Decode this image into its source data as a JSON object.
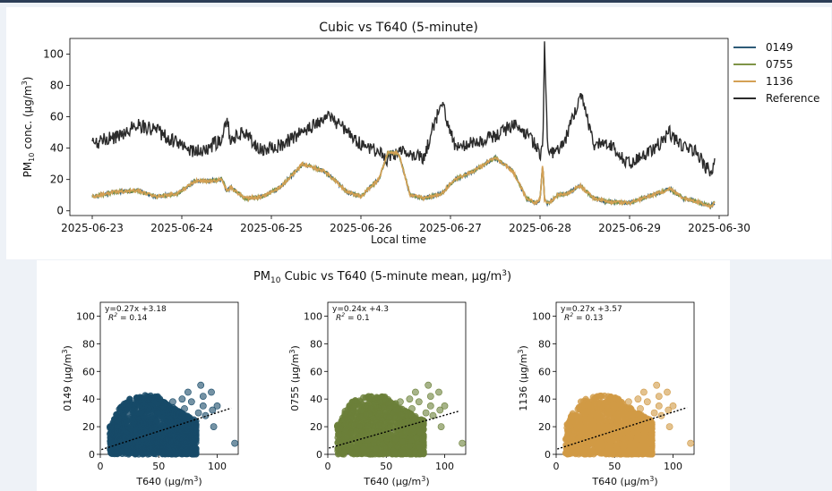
{
  "chart_data": [
    {
      "type": "line",
      "title": "Cubic vs T640 (5-minute)",
      "xlabel": "Local time",
      "ylabel_main": "PM",
      "ylabel_sub": "10",
      "ylabel_rest": " conc. (µg/m",
      "ylabel_sup": "3",
      "ylabel_end": ")",
      "x_ticks": [
        "2025-06-23",
        "2025-06-24",
        "2025-06-25",
        "2025-06-26",
        "2025-06-27",
        "2025-06-28",
        "2025-06-29",
        "2025-06-30"
      ],
      "y_ticks": [
        "0",
        "20",
        "40",
        "60",
        "80",
        "100"
      ],
      "ylim": [
        -3,
        110
      ],
      "xlim_days": [
        -0.25,
        7.1
      ],
      "grid": false,
      "legend_position": "outside-right",
      "series": [
        {
          "name": "0149",
          "color": "#2e5b78"
        },
        {
          "name": "0755",
          "color": "#7f9447"
        },
        {
          "name": "1136",
          "color": "#d4a055"
        },
        {
          "name": "Reference",
          "color": "#2b2b2b"
        }
      ],
      "x_days": [
        0,
        0.25,
        0.5,
        0.7,
        0.95,
        1.15,
        1.3,
        1.45,
        1.5,
        1.55,
        1.7,
        1.9,
        2.1,
        2.35,
        2.6,
        2.85,
        3.0,
        3.1,
        3.2,
        3.3,
        3.42,
        3.55,
        3.7,
        3.9,
        4.05,
        4.25,
        4.5,
        4.7,
        4.85,
        4.95,
        5.0,
        5.03,
        5.05,
        5.08,
        5.1,
        5.2,
        5.3,
        5.45,
        5.6,
        5.75,
        6.0,
        6.25,
        6.45,
        6.6,
        6.75,
        6.85,
        6.9,
        6.95
      ],
      "reference_values": [
        43,
        47,
        55,
        52,
        43,
        38,
        40,
        46,
        59,
        45,
        50,
        38,
        42,
        50,
        60,
        52,
        42,
        40,
        37,
        32,
        38,
        36,
        34,
        70,
        40,
        43,
        48,
        55,
        50,
        42,
        35,
        40,
        107,
        45,
        38,
        38,
        48,
        75,
        42,
        44,
        30,
        38,
        50,
        40,
        38,
        28,
        25,
        30
      ],
      "sensor_values": [
        9,
        12,
        13,
        9,
        11,
        19,
        19,
        20,
        13,
        15,
        8,
        9,
        15,
        30,
        25,
        12,
        9,
        15,
        20,
        37,
        37,
        10,
        8,
        11,
        20,
        25,
        34,
        25,
        8,
        5,
        7,
        30,
        7,
        5,
        5,
        10,
        11,
        16,
        8,
        6,
        5,
        10,
        14,
        8,
        6,
        4,
        3,
        5
      ]
    },
    {
      "type": "scatter",
      "suptitle_a": "PM",
      "suptitle_sub": "10",
      "suptitle_b": " Cubic vs T640 (5-minute mean, µg/m",
      "suptitle_sup": "3",
      "suptitle_end": ")",
      "xlabel_a": "T640 (µg/m",
      "xlabel_sup": "3",
      "xlabel_end": ")",
      "x_ticks": [
        "0",
        "50",
        "100"
      ],
      "y_ticks": [
        "0",
        "20",
        "40",
        "60",
        "80",
        "100"
      ],
      "xlim": [
        0,
        118
      ],
      "ylim": [
        0,
        110
      ],
      "panels": [
        {
          "sensor": "0149",
          "ylabel": "0149 (µg/m",
          "color": "#174a68",
          "equation": "y=0.27x +3.18",
          "r2_label": "R",
          "r2_value": " = 0.14",
          "slope": 0.27,
          "intercept": 3.18
        },
        {
          "sensor": "0755",
          "ylabel": "0755 (µg/m",
          "color": "#6b8039",
          "equation": "y=0.24x +4.3",
          "r2_label": "R",
          "r2_value": " = 0.1",
          "slope": 0.24,
          "intercept": 4.3
        },
        {
          "sensor": "1136",
          "ylabel": "1136 (µg/m",
          "color": "#d19a45",
          "equation": "y=0.27x +3.57",
          "r2_label": "R",
          "r2_value": " = 0.13",
          "slope": 0.27,
          "intercept": 3.57
        }
      ],
      "cloud_envelope": {
        "x": [
          10,
          15,
          20,
          30,
          40,
          50,
          60,
          70,
          80
        ],
        "y_top": [
          22,
          32,
          38,
          42,
          43,
          42,
          36,
          30,
          25
        ]
      },
      "outliers": [
        [
          62,
          38
        ],
        [
          70,
          40
        ],
        [
          72,
          33
        ],
        [
          75,
          45
        ],
        [
          78,
          38
        ],
        [
          80,
          25
        ],
        [
          84,
          30
        ],
        [
          86,
          50
        ],
        [
          88,
          35
        ],
        [
          88,
          42
        ],
        [
          90,
          28
        ],
        [
          95,
          45
        ],
        [
          96,
          32
        ],
        [
          100,
          35
        ],
        [
          97,
          20
        ],
        [
          115,
          8
        ]
      ]
    }
  ]
}
